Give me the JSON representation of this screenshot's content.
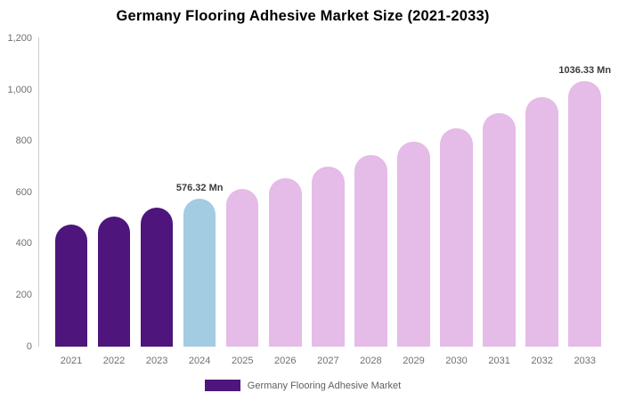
{
  "title": "Germany Flooring Adhesive Market Size (2021-2033)",
  "legend": {
    "label": "Germany Flooring Adhesive Market",
    "swatch_color": "#4E157C"
  },
  "colors": {
    "historical_bar": "#4E157C",
    "current_year_bar": "#A3CBE1",
    "forecast_bar": "#E5BBE7",
    "axis_line": "#cccccc",
    "tick_text": "#707070",
    "data_label_text": "#3b3b3b"
  },
  "chart_data": {
    "type": "bar",
    "title": "Germany Flooring Adhesive Market Size (2021-2033)",
    "xlabel": "",
    "ylabel": "",
    "unit": "Mn",
    "categories": [
      "2021",
      "2022",
      "2023",
      "2024",
      "2025",
      "2026",
      "2027",
      "2028",
      "2029",
      "2030",
      "2031",
      "2032",
      "2033"
    ],
    "values": [
      474,
      506,
      540,
      576.32,
      615,
      657,
      701,
      748,
      798,
      852,
      910,
      971,
      1036.33
    ],
    "bar_colors": [
      "#4E157C",
      "#4E157C",
      "#4E157C",
      "#A3CBE1",
      "#E5BBE7",
      "#E5BBE7",
      "#E5BBE7",
      "#E5BBE7",
      "#E5BBE7",
      "#E5BBE7",
      "#E5BBE7",
      "#E5BBE7",
      "#E5BBE7"
    ],
    "ylim": [
      0,
      1200
    ],
    "yticks": [
      0,
      200,
      400,
      600,
      800,
      1000,
      1200
    ],
    "ytick_labels": [
      "0",
      "200",
      "400",
      "600",
      "800",
      "1,000",
      "1,200"
    ],
    "grid": false,
    "legend_position": "bottom",
    "data_labels": [
      {
        "index": 3,
        "text": "576.32 Mn"
      },
      {
        "index": 12,
        "text": "1036.33 Mn"
      }
    ]
  }
}
